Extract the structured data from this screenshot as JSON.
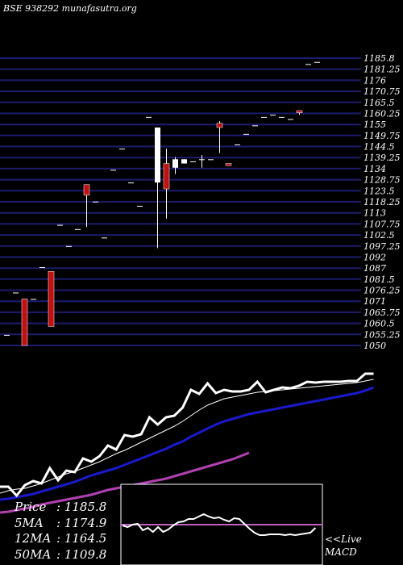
{
  "header": {
    "title": "BSE 938292 munafasutra.org"
  },
  "chart_data": {
    "type": "candlestick",
    "ylim": [
      1050,
      1185.8
    ],
    "y_tick_labels": [
      "1185.8",
      "1181.25",
      "1176",
      "1170.75",
      "1165.5",
      "1160.25",
      "1155",
      "1149.75",
      "1144.5",
      "1139.25",
      "1134",
      "1128.75",
      "1123.5",
      "1118.25",
      "1113",
      "1107.75",
      "1102.5",
      "1097.25",
      "1092",
      "1087",
      "1081.5",
      "1076.25",
      "1071",
      "1065.75",
      "1060.5",
      "1055.25",
      "1050"
    ],
    "candles": [
      {
        "o": 1055,
        "h": 1055,
        "l": 1055,
        "c": 1055
      },
      {
        "o": 1075,
        "h": 1075,
        "l": 1075,
        "c": 1075
      },
      {
        "o": 1072,
        "h": 1072,
        "l": 1050,
        "c": 1050
      },
      {
        "o": 1072,
        "h": 1072,
        "l": 1072,
        "c": 1072
      },
      {
        "o": 1087,
        "h": 1087,
        "l": 1087,
        "c": 1087
      },
      {
        "o": 1085,
        "h": 1085,
        "l": 1059,
        "c": 1059
      },
      {
        "o": 1107,
        "h": 1107,
        "l": 1107,
        "c": 1107
      },
      {
        "o": 1097,
        "h": 1097,
        "l": 1097,
        "c": 1097
      },
      {
        "o": 1105,
        "h": 1105,
        "l": 1105,
        "c": 1105
      },
      {
        "o": 1126,
        "h": 1126,
        "l": 1106,
        "c": 1121
      },
      {
        "o": 1118,
        "h": 1118,
        "l": 1118,
        "c": 1118
      },
      {
        "o": 1101,
        "h": 1101,
        "l": 1101,
        "c": 1101
      },
      {
        "o": 1133,
        "h": 1133,
        "l": 1133,
        "c": 1133
      },
      {
        "o": 1143,
        "h": 1143,
        "l": 1143,
        "c": 1143
      },
      {
        "o": 1127,
        "h": 1127,
        "l": 1127,
        "c": 1127
      },
      {
        "o": 1116,
        "h": 1116,
        "l": 1116,
        "c": 1116
      },
      {
        "o": 1158,
        "h": 1158,
        "l": 1158,
        "c": 1158
      },
      {
        "o": 1127,
        "h": 1153,
        "l": 1096,
        "c": 1153
      },
      {
        "o": 1136,
        "h": 1143,
        "l": 1110,
        "c": 1124
      },
      {
        "o": 1134,
        "h": 1139,
        "l": 1131,
        "c": 1138
      },
      {
        "o": 1136,
        "h": 1138,
        "l": 1136,
        "c": 1138
      },
      {
        "o": 1137,
        "h": 1137,
        "l": 1137,
        "c": 1137
      },
      {
        "o": 1138,
        "h": 1140,
        "l": 1134,
        "c": 1138
      },
      {
        "o": 1138,
        "h": 1138,
        "l": 1138,
        "c": 1138
      },
      {
        "o": 1155,
        "h": 1156,
        "l": 1141,
        "c": 1153
      },
      {
        "o": 1136,
        "h": 1136,
        "l": 1136,
        "c": 1135
      },
      {
        "o": 1145,
        "h": 1145,
        "l": 1145,
        "c": 1145
      },
      {
        "o": 1150,
        "h": 1150,
        "l": 1150,
        "c": 1150
      },
      {
        "o": 1154,
        "h": 1154,
        "l": 1154,
        "c": 1154
      },
      {
        "o": 1158,
        "h": 1158,
        "l": 1158,
        "c": 1158
      },
      {
        "o": 1159,
        "h": 1159,
        "l": 1159,
        "c": 1159
      },
      {
        "o": 1158,
        "h": 1158,
        "l": 1158,
        "c": 1158
      },
      {
        "o": 1157,
        "h": 1157,
        "l": 1157,
        "c": 1157
      },
      {
        "o": 1161,
        "h": 1161,
        "l": 1159,
        "c": 1160
      },
      {
        "o": 1183,
        "h": 1183,
        "l": 1183,
        "c": 1183
      },
      {
        "o": 1184,
        "h": 1184,
        "l": 1184,
        "c": 1184
      }
    ],
    "series_colors": {
      "price": "#ffffff",
      "ma5": "#ffffff",
      "ma12": "#1a1acc",
      "ma50": "#b040b0",
      "macd": "#ffffff",
      "signal": "#c060c0",
      "grid": "#1c1c6e"
    },
    "price_line": [
      1017,
      1017,
      1006,
      1019,
      1024,
      1021,
      1040,
      1025,
      1037,
      1035,
      1052,
      1048,
      1055,
      1068,
      1063,
      1081,
      1079,
      1082,
      1103,
      1094,
      1103,
      1105,
      1115,
      1137,
      1132,
      1145,
      1133,
      1137,
      1135,
      1135,
      1137,
      1147,
      1134,
      1137,
      1140,
      1139,
      1142,
      1147,
      1146,
      1147,
      1147,
      1147,
      1148,
      1148,
      1157,
      1157
    ],
    "ma5": [
      1009,
      1012,
      1014,
      1015,
      1018,
      1021,
      1025,
      1029,
      1033,
      1036,
      1040,
      1044,
      1048,
      1053,
      1058,
      1062,
      1067,
      1072,
      1077,
      1082,
      1087,
      1092,
      1098,
      1105,
      1112,
      1118,
      1122,
      1126,
      1128,
      1130,
      1132,
      1134,
      1135,
      1136,
      1137,
      1138,
      1139,
      1140,
      1141,
      1142,
      1143,
      1144,
      1145,
      1146,
      1148,
      1150
    ],
    "ma12": [
      1001,
      1002,
      1004,
      1006,
      1008,
      1011,
      1014,
      1017,
      1020,
      1023,
      1027,
      1031,
      1034,
      1037,
      1040,
      1044,
      1048,
      1052,
      1056,
      1060,
      1064,
      1069,
      1073,
      1079,
      1084,
      1089,
      1094,
      1098,
      1101,
      1104,
      1107,
      1109,
      1111,
      1113,
      1115,
      1117,
      1119,
      1121,
      1123,
      1125,
      1127,
      1129,
      1131,
      1133,
      1136,
      1140
    ],
    "ma50": [
      985,
      986,
      988,
      990,
      992,
      995,
      997,
      999,
      1001,
      1003,
      1005,
      1007,
      1010,
      1013,
      1015,
      1017,
      1019,
      1021,
      1023,
      1025,
      1027,
      1030,
      1033,
      1036,
      1039,
      1042,
      1045,
      1048,
      1051,
      1055,
      1059
    ],
    "macd_line": [
      651,
      653,
      650,
      649,
      657,
      654,
      659,
      653,
      659,
      656,
      651,
      647,
      646,
      643,
      643,
      640,
      637,
      640,
      642,
      641,
      644,
      646,
      642,
      643,
      649,
      655,
      660,
      663,
      663,
      662,
      662,
      662,
      663,
      662,
      663,
      662,
      661,
      660,
      654
    ],
    "macd_signal": 650
  },
  "ma_legend": [
    {
      "name": "Price",
      "value": ": 1185.8"
    },
    {
      "name": "5MA",
      "value": ": 1174.9"
    },
    {
      "name": "12MA",
      "value": ": 1164.5"
    },
    {
      "name": "50MA",
      "value": ": 1109.8"
    }
  ],
  "macd_label": {
    "line1": "<<Live",
    "line2": "MACD"
  }
}
